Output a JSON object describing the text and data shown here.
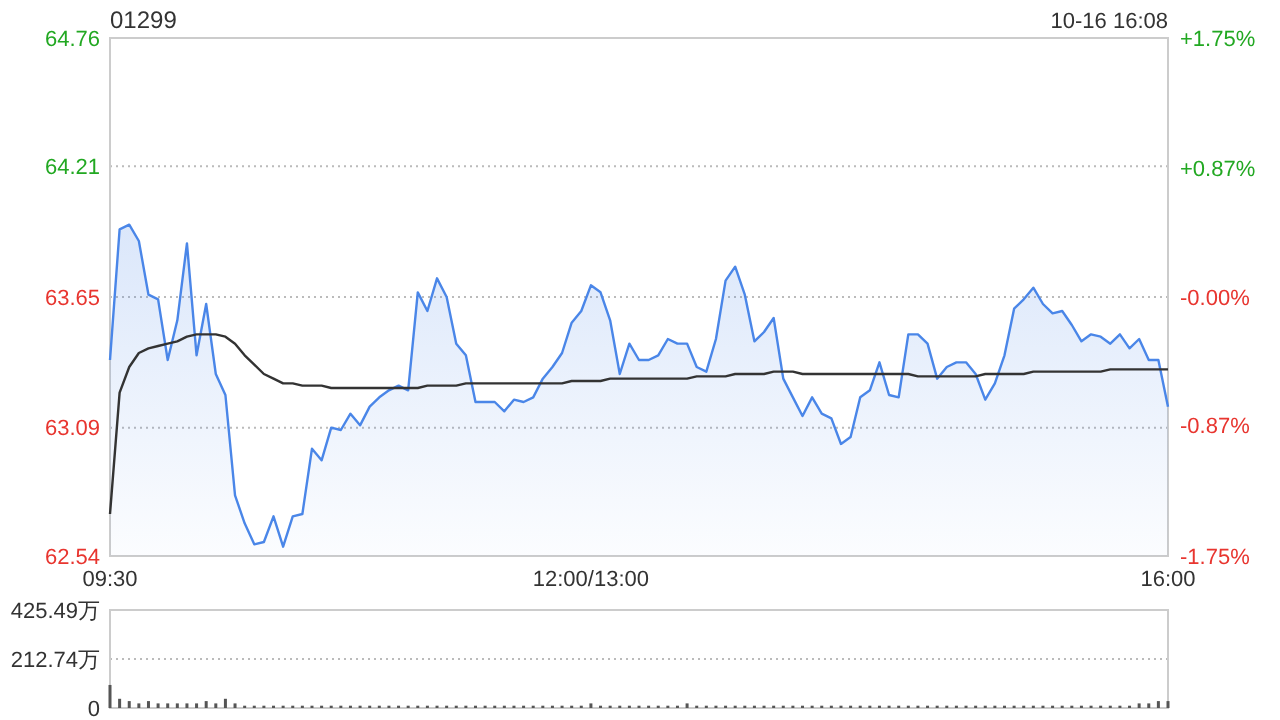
{
  "chart_data": [
    {
      "type": "line",
      "title": "01299",
      "annotations": [
        "10-16 16:08"
      ],
      "grid": "y",
      "categories": [
        "09:30",
        null,
        null,
        null,
        null,
        null,
        null,
        null,
        null,
        null,
        null,
        null,
        null,
        null,
        null,
        null,
        null,
        null,
        null,
        null,
        null,
        null,
        null,
        null,
        null,
        null,
        null,
        null,
        null,
        null,
        null,
        null,
        null,
        null,
        null,
        null,
        null,
        null,
        null,
        null,
        null,
        null,
        null,
        null,
        null,
        null,
        null,
        null,
        null,
        null,
        "12:00/13:00",
        null,
        null,
        null,
        null,
        null,
        null,
        null,
        null,
        null,
        null,
        null,
        null,
        null,
        null,
        null,
        null,
        null,
        null,
        null,
        null,
        null,
        null,
        null,
        null,
        null,
        null,
        null,
        null,
        null,
        null,
        null,
        null,
        null,
        null,
        null,
        null,
        null,
        null,
        null,
        null,
        null,
        null,
        null,
        null,
        null,
        null,
        null,
        null,
        null,
        null,
        null,
        null,
        null,
        null,
        null,
        null,
        null,
        null,
        null,
        "16:00"
      ],
      "ylim": [
        62.54,
        64.76
      ],
      "yticks": [
        62.54,
        63.09,
        63.65,
        64.21,
        64.76
      ],
      "y2lim": [
        -1.75,
        1.75
      ],
      "y2ticks": [
        {
          "value": -1.75,
          "label": "-1.75%"
        },
        {
          "value": -0.87,
          "label": "-0.87%"
        },
        {
          "value": 0,
          "label": "-0.00%"
        },
        {
          "value": 0.87,
          "label": "+0.87%"
        },
        {
          "value": 1.75,
          "label": "+1.75%"
        }
      ],
      "series": [
        {
          "type": "area",
          "color": "#4a86e8",
          "values": [
            63.38,
            63.94,
            63.96,
            63.89,
            63.66,
            63.64,
            63.38,
            63.55,
            63.88,
            63.4,
            63.62,
            63.32,
            63.23,
            62.8,
            62.68,
            62.59,
            62.6,
            62.71,
            62.58,
            62.71,
            62.72,
            63.0,
            62.95,
            63.09,
            63.08,
            63.15,
            63.1,
            63.18,
            63.22,
            63.25,
            63.27,
            63.25,
            63.67,
            63.59,
            63.73,
            63.65,
            63.45,
            63.4,
            63.2,
            63.2,
            63.2,
            63.16,
            63.21,
            63.2,
            63.22,
            63.3,
            63.35,
            63.41,
            63.54,
            63.59,
            63.7,
            63.67,
            63.55,
            63.32,
            63.45,
            63.38,
            63.38,
            63.4,
            63.47,
            63.45,
            63.45,
            63.35,
            63.33,
            63.47,
            63.72,
            63.78,
            63.66,
            63.46,
            63.5,
            63.56,
            63.3,
            63.22,
            63.14,
            63.22,
            63.15,
            63.13,
            63.02,
            63.05,
            63.22,
            63.25,
            63.37,
            63.23,
            63.22,
            63.49,
            63.49,
            63.45,
            63.3,
            63.35,
            63.37,
            63.37,
            63.32,
            63.21,
            63.28,
            63.4,
            63.6,
            63.64,
            63.69,
            63.62,
            63.58,
            63.59,
            63.53,
            63.46,
            63.49,
            63.48,
            63.45,
            63.49,
            63.43,
            63.47,
            63.38,
            63.38,
            63.18
          ]
        },
        {
          "type": "line",
          "color": "#333333",
          "values": [
            62.72,
            63.24,
            63.35,
            63.41,
            63.43,
            63.44,
            63.45,
            63.46,
            63.48,
            63.49,
            63.49,
            63.49,
            63.48,
            63.45,
            63.4,
            63.36,
            63.32,
            63.3,
            63.28,
            63.28,
            63.27,
            63.27,
            63.27,
            63.26,
            63.26,
            63.26,
            63.26,
            63.26,
            63.26,
            63.26,
            63.26,
            63.26,
            63.26,
            63.27,
            63.27,
            63.27,
            63.27,
            63.28,
            63.28,
            63.28,
            63.28,
            63.28,
            63.28,
            63.28,
            63.28,
            63.28,
            63.28,
            63.28,
            63.29,
            63.29,
            63.29,
            63.29,
            63.3,
            63.3,
            63.3,
            63.3,
            63.3,
            63.3,
            63.3,
            63.3,
            63.3,
            63.31,
            63.31,
            63.31,
            63.31,
            63.32,
            63.32,
            63.32,
            63.32,
            63.33,
            63.33,
            63.33,
            63.32,
            63.32,
            63.32,
            63.32,
            63.32,
            63.32,
            63.32,
            63.32,
            63.32,
            63.32,
            63.32,
            63.32,
            63.31,
            63.31,
            63.31,
            63.31,
            63.31,
            63.31,
            63.31,
            63.32,
            63.32,
            63.32,
            63.32,
            63.32,
            63.33,
            63.33,
            63.33,
            63.33,
            63.33,
            63.33,
            63.33,
            63.33,
            63.34,
            63.34,
            63.34,
            63.34,
            63.34,
            63.34,
            63.34
          ]
        }
      ]
    },
    {
      "type": "bar",
      "color": "#555555",
      "grid": "y",
      "categories": [
        null,
        null,
        null,
        null,
        null,
        null,
        null,
        null,
        null,
        null,
        null,
        null,
        null,
        null,
        null,
        null,
        null,
        null,
        null,
        null,
        null,
        null,
        null,
        null,
        null,
        null,
        null,
        null,
        null,
        null,
        null,
        null,
        null,
        null,
        null,
        null,
        null,
        null,
        null,
        null,
        null,
        null,
        null,
        null,
        null,
        null,
        null,
        null,
        null,
        null,
        null,
        null,
        null,
        null,
        null,
        null,
        null,
        null,
        null,
        null,
        null,
        null,
        null,
        null,
        null,
        null,
        null,
        null,
        null,
        null,
        null,
        null,
        null,
        null,
        null,
        null,
        null,
        null,
        null,
        null,
        null,
        null,
        null,
        null,
        null,
        null,
        null,
        null,
        null,
        null,
        null,
        null,
        null,
        null,
        null,
        null,
        null,
        null,
        null,
        null,
        null,
        null,
        null,
        null,
        null,
        null,
        null,
        null,
        null,
        null,
        null
      ],
      "ylim": [
        0,
        425.49
      ],
      "yticks": [
        0,
        {
          "value": 212.74,
          "label": "212.74万"
        },
        {
          "value": 425.49,
          "label": "425.49万"
        }
      ],
      "values": [
        100,
        40,
        30,
        20,
        30,
        20,
        20,
        20,
        20,
        20,
        30,
        20,
        40,
        20,
        10,
        10,
        10,
        10,
        10,
        10,
        10,
        10,
        10,
        10,
        10,
        10,
        10,
        10,
        10,
        10,
        10,
        10,
        10,
        10,
        10,
        10,
        10,
        10,
        10,
        10,
        10,
        10,
        10,
        10,
        10,
        10,
        10,
        10,
        10,
        10,
        20,
        10,
        10,
        10,
        10,
        10,
        10,
        10,
        10,
        10,
        20,
        10,
        10,
        10,
        10,
        10,
        10,
        10,
        10,
        10,
        10,
        10,
        10,
        10,
        10,
        10,
        10,
        10,
        10,
        10,
        10,
        10,
        10,
        10,
        10,
        10,
        10,
        10,
        10,
        10,
        10,
        10,
        10,
        10,
        10,
        10,
        10,
        10,
        10,
        10,
        10,
        10,
        10,
        10,
        10,
        10,
        10,
        20,
        20,
        30,
        30
      ]
    }
  ]
}
